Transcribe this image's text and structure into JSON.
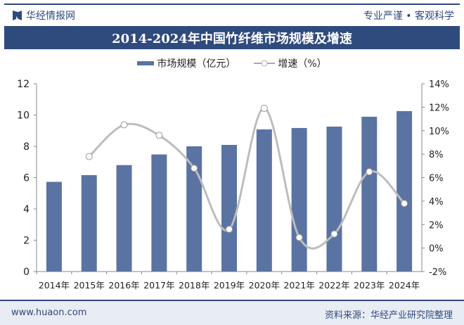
{
  "header": {
    "brand": "华经情报网",
    "slogan": "专业严谨 • 客观科学"
  },
  "footer": {
    "url": "www.huaon.com",
    "source": "资料来源：华经产业研究院整理"
  },
  "chart_data": {
    "type": "bar+line",
    "title": "2014-2024年中国竹纤维市场规模及增速",
    "categories": [
      "2014年",
      "2015年",
      "2016年",
      "2017年",
      "2018年",
      "2019年",
      "2020年",
      "2021年",
      "2022年",
      "2023年",
      "2024年"
    ],
    "series": [
      {
        "name": "市场规模（亿元）",
        "type": "bar",
        "axis": "left",
        "color": "#5a73a3",
        "values": [
          5.73,
          6.16,
          6.8,
          7.48,
          8.0,
          8.09,
          9.08,
          9.17,
          9.26,
          9.89,
          10.25
        ]
      },
      {
        "name": "增速（%）",
        "type": "line",
        "axis": "right",
        "color": "#bdbdbd",
        "values": [
          null,
          7.8,
          10.5,
          9.6,
          6.8,
          1.6,
          11.9,
          0.9,
          1.2,
          6.5,
          3.8
        ]
      }
    ],
    "left_axis": {
      "range": [
        0,
        12
      ],
      "ticks": [
        "0",
        "2",
        "4",
        "6",
        "8",
        "10",
        "12"
      ]
    },
    "right_axis": {
      "range": [
        -2,
        14
      ],
      "ticks": [
        "-2%",
        "0%",
        "2%",
        "4%",
        "6%",
        "8%",
        "10%",
        "12%",
        "14%"
      ]
    },
    "legend": "top",
    "grid": false
  }
}
